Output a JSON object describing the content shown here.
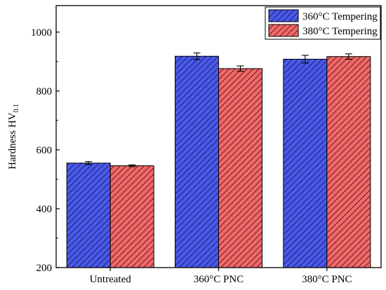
{
  "chart_data": {
    "type": "bar",
    "categories": [
      "Untreated",
      "360°C PNC",
      "380°C PNC"
    ],
    "series": [
      {
        "name": "360°C Tempering",
        "values": [
          555,
          918,
          908
        ],
        "errors": [
          5,
          11,
          13
        ],
        "color": "#4a5ae8",
        "hatch_color": "#1a237e"
      },
      {
        "name": "380°C Tempering",
        "values": [
          546,
          876,
          917
        ],
        "errors": [
          3,
          9,
          9
        ],
        "color": "#ef6a6a",
        "hatch_color": "#7f1d1d"
      }
    ],
    "ylabel": "Hardness HV",
    "ylabel_subscript": "0.1",
    "xlabel": "",
    "ylim": [
      200,
      1090
    ],
    "yticks": [
      "200",
      "400",
      "600",
      "800",
      "1000"
    ],
    "grid": false,
    "legend_position": "top-right"
  }
}
